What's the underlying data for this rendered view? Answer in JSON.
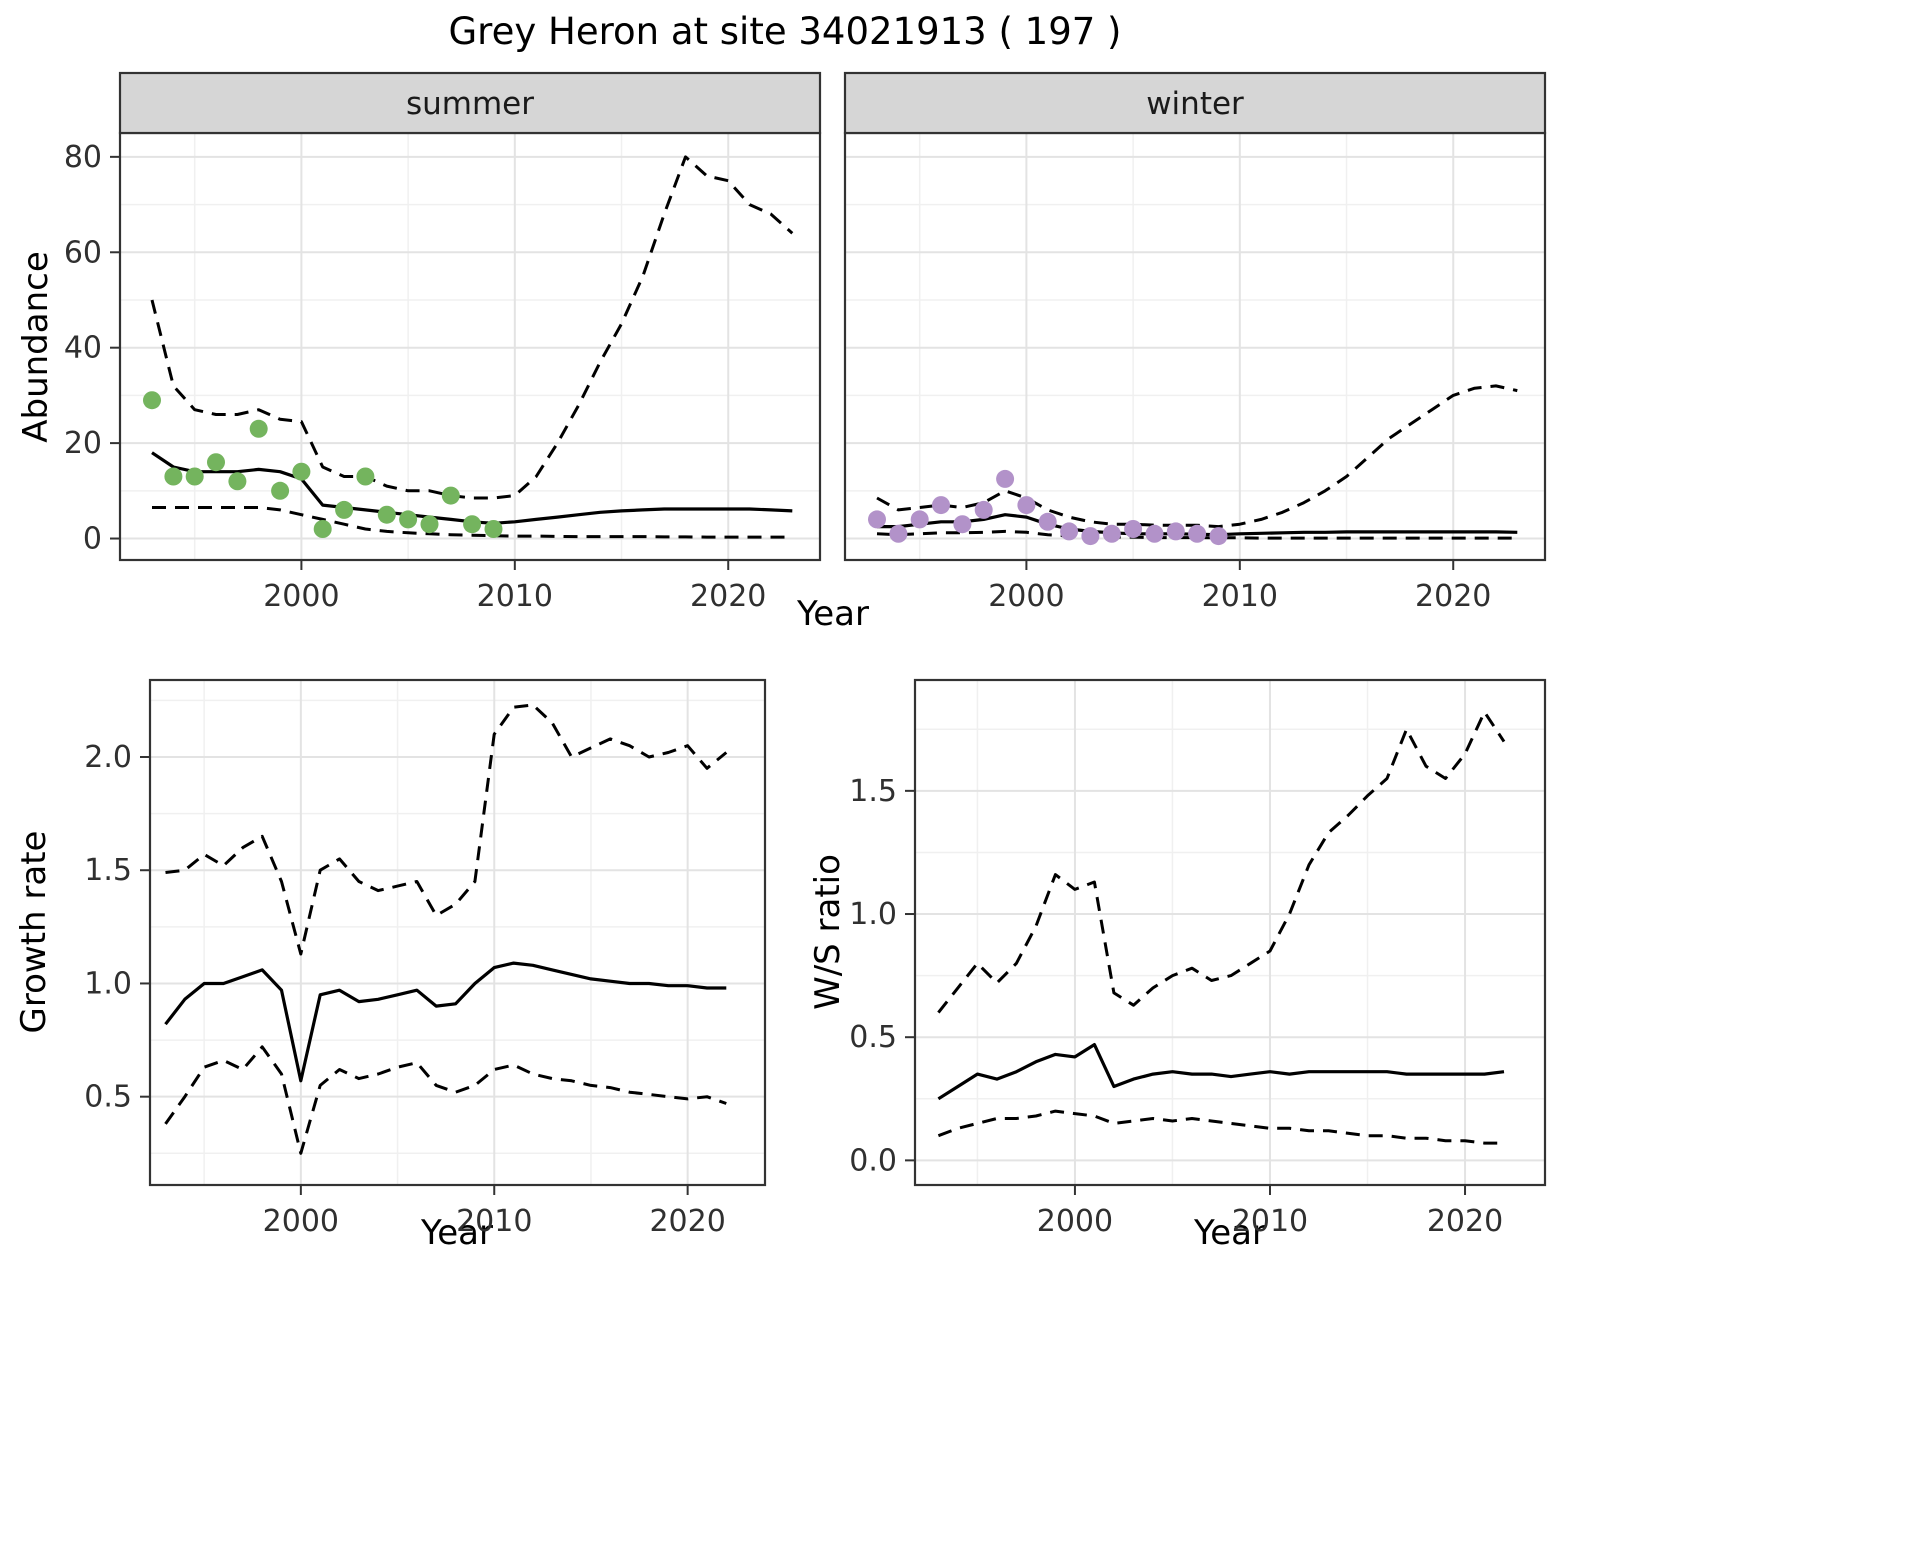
{
  "title": "Grey Heron at site 34021913 ( 197 )",
  "colors": {
    "strip_background": "#d6d6d6",
    "summer_points": "#74b45e",
    "winter_points": "#b292c9",
    "line": "#000000"
  },
  "chart_data": [
    {
      "id": "abundance-summer",
      "type": "line",
      "facet": "summer",
      "xlabel": "Year",
      "ylabel": "Abundance",
      "xlim": [
        1991.5,
        2024.3
      ],
      "ylim": [
        -4.5,
        85
      ],
      "xticks": [
        2000,
        2010,
        2020
      ],
      "xtick_labels": [
        "2000",
        "2010",
        "2020"
      ],
      "yticks": [
        0,
        20,
        40,
        60,
        80
      ],
      "ytick_labels": [
        "0",
        "20",
        "40",
        "60",
        "80"
      ],
      "grid": true,
      "legend": "none",
      "series": [
        {
          "name": "fit-median",
          "style": "solid",
          "color": "#000000",
          "x": [
            1993,
            1994,
            1995,
            1996,
            1997,
            1998,
            1999,
            2000,
            2001,
            2002,
            2003,
            2004,
            2005,
            2006,
            2007,
            2008,
            2009,
            2010,
            2011,
            2012,
            2013,
            2014,
            2015,
            2016,
            2017,
            2018,
            2019,
            2020,
            2021,
            2022,
            2023
          ],
          "y": [
            18,
            15,
            14,
            14,
            14,
            14.5,
            14,
            12.5,
            7,
            6.5,
            6,
            5.5,
            5,
            4.5,
            4,
            3.5,
            3.2,
            3.5,
            4,
            4.5,
            5,
            5.5,
            5.8,
            6,
            6.2,
            6.2,
            6.2,
            6.2,
            6.2,
            6,
            5.8
          ]
        },
        {
          "name": "ci-upper",
          "style": "dashed",
          "color": "#000000",
          "x": [
            1993,
            1994,
            1995,
            1996,
            1997,
            1998,
            1999,
            2000,
            2001,
            2002,
            2003,
            2004,
            2005,
            2006,
            2007,
            2008,
            2009,
            2010,
            2011,
            2012,
            2013,
            2014,
            2015,
            2016,
            2017,
            2018,
            2019,
            2020,
            2021,
            2022,
            2023
          ],
          "y": [
            50,
            32,
            27,
            26,
            26,
            27,
            25,
            24.5,
            15,
            13,
            13,
            11,
            10,
            10,
            9,
            8.5,
            8.5,
            9,
            13,
            20,
            28,
            37,
            45,
            55,
            68,
            80,
            76,
            75,
            70,
            68,
            64
          ]
        },
        {
          "name": "ci-lower",
          "style": "dashed",
          "color": "#000000",
          "x": [
            1993,
            1994,
            1995,
            1996,
            1997,
            1998,
            1999,
            2000,
            2001,
            2002,
            2003,
            2004,
            2005,
            2006,
            2007,
            2008,
            2009,
            2010,
            2011,
            2012,
            2013,
            2014,
            2015,
            2016,
            2017,
            2018,
            2019,
            2020,
            2021,
            2022,
            2023
          ],
          "y": [
            6.5,
            6.5,
            6.5,
            6.5,
            6.5,
            6.5,
            6,
            5,
            4,
            3,
            2,
            1.5,
            1.2,
            1,
            0.8,
            0.7,
            0.6,
            0.5,
            0.5,
            0.45,
            0.4,
            0.4,
            0.4,
            0.4,
            0.35,
            0.35,
            0.3,
            0.3,
            0.3,
            0.3,
            0.3
          ]
        },
        {
          "name": "observed-counts",
          "style": "points",
          "color": "#74b45e",
          "x": [
            1993,
            1994,
            1995,
            1996,
            1997,
            1998,
            1999,
            2000,
            2001,
            2002,
            2003,
            2004,
            2005,
            2006,
            2007,
            2008,
            2009
          ],
          "y": [
            29,
            13,
            13,
            16,
            12,
            23,
            10,
            14,
            2,
            6,
            13,
            5,
            4,
            3,
            9,
            3,
            2
          ]
        }
      ]
    },
    {
      "id": "abundance-winter",
      "type": "line",
      "facet": "winter",
      "xlabel": "Year",
      "ylabel": "Abundance",
      "xlim": [
        1991.5,
        2024.3
      ],
      "ylim": [
        -4.5,
        85
      ],
      "xticks": [
        2000,
        2010,
        2020
      ],
      "xtick_labels": [
        "2000",
        "2010",
        "2020"
      ],
      "yticks": [
        0,
        20,
        40,
        60,
        80
      ],
      "ytick_labels": [
        "0",
        "20",
        "40",
        "60",
        "80"
      ],
      "grid": true,
      "legend": "none",
      "series": [
        {
          "name": "fit-median",
          "style": "solid",
          "color": "#000000",
          "x": [
            1993,
            1994,
            1995,
            1996,
            1997,
            1998,
            1999,
            2000,
            2001,
            2002,
            2003,
            2004,
            2005,
            2006,
            2007,
            2008,
            2009,
            2010,
            2011,
            2012,
            2013,
            2014,
            2015,
            2016,
            2017,
            2018,
            2019,
            2020,
            2021,
            2022,
            2023
          ],
          "y": [
            2.5,
            2.5,
            3,
            3.5,
            3.5,
            4,
            5,
            4.5,
            3,
            2,
            1.5,
            1.2,
            1,
            1,
            1,
            0.9,
            0.8,
            1,
            1.1,
            1.2,
            1.3,
            1.3,
            1.4,
            1.4,
            1.4,
            1.4,
            1.4,
            1.4,
            1.4,
            1.4,
            1.3
          ]
        },
        {
          "name": "ci-upper",
          "style": "dashed",
          "color": "#000000",
          "x": [
            1993,
            1994,
            1995,
            1996,
            1997,
            1998,
            1999,
            2000,
            2001,
            2002,
            2003,
            2004,
            2005,
            2006,
            2007,
            2008,
            2009,
            2010,
            2011,
            2012,
            2013,
            2014,
            2015,
            2016,
            2017,
            2018,
            2019,
            2020,
            2021,
            2022,
            2023
          ],
          "y": [
            8.5,
            6,
            6.5,
            7,
            6.5,
            7.5,
            10,
            8.5,
            6,
            4.5,
            3.5,
            3,
            3,
            2.8,
            2.8,
            2.8,
            2.5,
            3,
            4,
            5.5,
            7.5,
            10,
            13,
            17,
            21,
            24,
            27,
            30,
            31.5,
            32,
            31
          ]
        },
        {
          "name": "ci-lower",
          "style": "dashed",
          "color": "#000000",
          "x": [
            1993,
            1994,
            1995,
            1996,
            1997,
            1998,
            1999,
            2000,
            2001,
            2002,
            2003,
            2004,
            2005,
            2006,
            2007,
            2008,
            2009,
            2010,
            2011,
            2012,
            2013,
            2014,
            2015,
            2016,
            2017,
            2018,
            2019,
            2020,
            2021,
            2022,
            2023
          ],
          "y": [
            1,
            0.8,
            1,
            1.2,
            1.2,
            1.3,
            1.5,
            1.3,
            0.8,
            0.5,
            0.4,
            0.3,
            0.3,
            0.2,
            0.2,
            0.2,
            0.15,
            0.15,
            0.1,
            0.1,
            0.1,
            0.1,
            0.1,
            0.1,
            0.1,
            0.1,
            0.1,
            0.1,
            0.1,
            0.1,
            0.1
          ]
        },
        {
          "name": "observed-counts",
          "style": "points",
          "color": "#b292c9",
          "x": [
            1993,
            1994,
            1995,
            1996,
            1997,
            1998,
            1999,
            2000,
            2001,
            2002,
            2003,
            2004,
            2005,
            2006,
            2007,
            2008,
            2009
          ],
          "y": [
            4,
            1,
            4,
            7,
            3,
            6,
            12.5,
            7,
            3.5,
            1.5,
            0.5,
            1,
            2,
            1,
            1.5,
            1,
            0.5
          ]
        }
      ]
    },
    {
      "id": "growth-rate",
      "type": "line",
      "facet": "",
      "xlabel": "Year",
      "ylabel": "Growth rate",
      "xlim": [
        1992.2,
        2024.0
      ],
      "ylim": [
        0.11,
        2.34
      ],
      "xticks": [
        2000,
        2010,
        2020
      ],
      "xtick_labels": [
        "2000",
        "2010",
        "2020"
      ],
      "yticks": [
        0.5,
        1.0,
        1.5,
        2.0
      ],
      "ytick_labels": [
        "0.5",
        "1.0",
        "1.5",
        "2.0"
      ],
      "grid": true,
      "legend": "none",
      "series": [
        {
          "name": "fit-median",
          "style": "solid",
          "color": "#000000",
          "x": [
            1993,
            1994,
            1995,
            1996,
            1997,
            1998,
            1999,
            2000,
            2001,
            2002,
            2003,
            2004,
            2005,
            2006,
            2007,
            2008,
            2009,
            2010,
            2011,
            2012,
            2013,
            2014,
            2015,
            2016,
            2017,
            2018,
            2019,
            2020,
            2021,
            2022
          ],
          "y": [
            0.82,
            0.93,
            1.0,
            1.0,
            1.03,
            1.06,
            0.97,
            0.57,
            0.95,
            0.97,
            0.92,
            0.93,
            0.95,
            0.97,
            0.9,
            0.91,
            1.0,
            1.07,
            1.09,
            1.08,
            1.06,
            1.04,
            1.02,
            1.01,
            1.0,
            1.0,
            0.99,
            0.99,
            0.98,
            0.98
          ]
        },
        {
          "name": "ci-upper",
          "style": "dashed",
          "color": "#000000",
          "x": [
            1993,
            1994,
            1995,
            1996,
            1997,
            1998,
            1999,
            2000,
            2001,
            2002,
            2003,
            2004,
            2005,
            2006,
            2007,
            2008,
            2009,
            2010,
            2011,
            2012,
            2013,
            2014,
            2015,
            2016,
            2017,
            2018,
            2019,
            2020,
            2021,
            2022
          ],
          "y": [
            1.49,
            1.5,
            1.57,
            1.52,
            1.6,
            1.65,
            1.45,
            1.13,
            1.5,
            1.55,
            1.45,
            1.41,
            1.43,
            1.45,
            1.3,
            1.35,
            1.45,
            2.1,
            2.22,
            2.23,
            2.15,
            2.0,
            2.04,
            2.08,
            2.05,
            2.0,
            2.02,
            2.05,
            1.95,
            2.02
          ]
        },
        {
          "name": "ci-lower",
          "style": "dashed",
          "color": "#000000",
          "x": [
            1993,
            1994,
            1995,
            1996,
            1997,
            1998,
            1999,
            2000,
            2001,
            2002,
            2003,
            2004,
            2005,
            2006,
            2007,
            2008,
            2009,
            2010,
            2011,
            2012,
            2013,
            2014,
            2015,
            2016,
            2017,
            2018,
            2019,
            2020,
            2021,
            2022
          ],
          "y": [
            0.38,
            0.5,
            0.63,
            0.66,
            0.62,
            0.72,
            0.6,
            0.25,
            0.55,
            0.62,
            0.58,
            0.6,
            0.63,
            0.65,
            0.55,
            0.52,
            0.55,
            0.62,
            0.64,
            0.6,
            0.58,
            0.57,
            0.55,
            0.54,
            0.52,
            0.51,
            0.5,
            0.49,
            0.5,
            0.47
          ]
        }
      ]
    },
    {
      "id": "ws-ratio",
      "type": "line",
      "facet": "",
      "xlabel": "Year",
      "ylabel": "W/S ratio",
      "xlim": [
        1991.8,
        2024.1
      ],
      "ylim": [
        -0.1,
        1.95
      ],
      "xticks": [
        2000,
        2010,
        2020
      ],
      "xtick_labels": [
        "2000",
        "2010",
        "2020"
      ],
      "yticks": [
        0.0,
        0.5,
        1.0,
        1.5
      ],
      "ytick_labels": [
        "0.0",
        "0.5",
        "1.0",
        "1.5"
      ],
      "grid": true,
      "legend": "none",
      "series": [
        {
          "name": "fit-median",
          "style": "solid",
          "color": "#000000",
          "x": [
            1993,
            1994,
            1995,
            1996,
            1997,
            1998,
            1999,
            2000,
            2001,
            2002,
            2003,
            2004,
            2005,
            2006,
            2007,
            2008,
            2009,
            2010,
            2011,
            2012,
            2013,
            2014,
            2015,
            2016,
            2017,
            2018,
            2019,
            2020,
            2021,
            2022
          ],
          "y": [
            0.25,
            0.3,
            0.35,
            0.33,
            0.36,
            0.4,
            0.43,
            0.42,
            0.47,
            0.3,
            0.33,
            0.35,
            0.36,
            0.35,
            0.35,
            0.34,
            0.35,
            0.36,
            0.35,
            0.36,
            0.36,
            0.36,
            0.36,
            0.36,
            0.35,
            0.35,
            0.35,
            0.35,
            0.35,
            0.36
          ]
        },
        {
          "name": "ci-upper",
          "style": "dashed",
          "color": "#000000",
          "x": [
            1993,
            1994,
            1995,
            1996,
            1997,
            1998,
            1999,
            2000,
            2001,
            2002,
            2003,
            2004,
            2005,
            2006,
            2007,
            2008,
            2009,
            2010,
            2011,
            2012,
            2013,
            2014,
            2015,
            2016,
            2017,
            2018,
            2019,
            2020,
            2021,
            2022
          ],
          "y": [
            0.6,
            0.7,
            0.8,
            0.72,
            0.8,
            0.95,
            1.16,
            1.1,
            1.13,
            0.68,
            0.63,
            0.7,
            0.75,
            0.78,
            0.73,
            0.75,
            0.8,
            0.85,
            1.0,
            1.2,
            1.33,
            1.4,
            1.48,
            1.55,
            1.75,
            1.6,
            1.55,
            1.65,
            1.82,
            1.7
          ]
        },
        {
          "name": "ci-lower",
          "style": "dashed",
          "color": "#000000",
          "x": [
            1993,
            1994,
            1995,
            1996,
            1997,
            1998,
            1999,
            2000,
            2001,
            2002,
            2003,
            2004,
            2005,
            2006,
            2007,
            2008,
            2009,
            2010,
            2011,
            2012,
            2013,
            2014,
            2015,
            2016,
            2017,
            2018,
            2019,
            2020,
            2021,
            2022
          ],
          "y": [
            0.1,
            0.13,
            0.15,
            0.17,
            0.17,
            0.18,
            0.2,
            0.19,
            0.18,
            0.15,
            0.16,
            0.17,
            0.16,
            0.17,
            0.16,
            0.15,
            0.14,
            0.13,
            0.13,
            0.12,
            0.12,
            0.11,
            0.1,
            0.1,
            0.09,
            0.09,
            0.08,
            0.08,
            0.07,
            0.07
          ]
        }
      ]
    }
  ]
}
